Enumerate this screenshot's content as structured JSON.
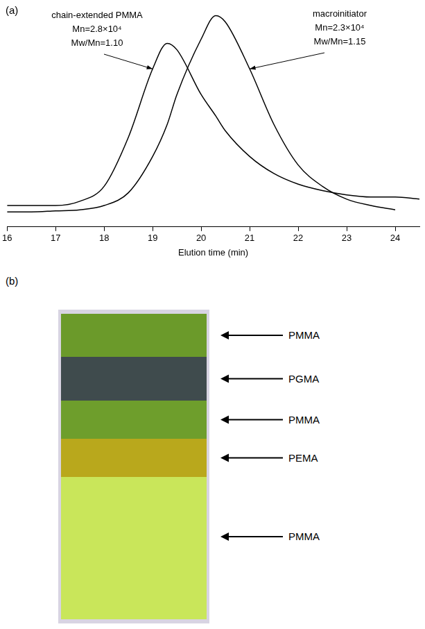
{
  "chart_data": {
    "type": "line",
    "panel_label": "(a)",
    "x_label": "Elution time (min)",
    "x": [
      16,
      16.5,
      17,
      17.5,
      18,
      18.5,
      19,
      19.3,
      19.5,
      20,
      20.3,
      20.5,
      21,
      21.5,
      22,
      22.5,
      23,
      23.5,
      24,
      24.5
    ],
    "series": [
      {
        "name": "chain-extended PMMA",
        "color": "#000000",
        "labels": [
          "Mn=2.8×10⁴",
          "Mw/Mn=1.10"
        ],
        "values": [
          0.1,
          0.1,
          0.1,
          0.12,
          0.19,
          0.42,
          0.74,
          0.86,
          0.83,
          0.62,
          0.52,
          0.45,
          0.33,
          0.25,
          0.2,
          0.17,
          0.15,
          0.14,
          0.14,
          0.13
        ]
      },
      {
        "name": "macroinitiator",
        "color": "#000000",
        "labels": [
          "Mn=2.3×10⁴",
          "Mw/Mn=1.15"
        ],
        "values": [
          0.07,
          0.07,
          0.075,
          0.08,
          0.1,
          0.16,
          0.33,
          0.48,
          0.62,
          0.88,
          0.99,
          0.96,
          0.74,
          0.48,
          0.29,
          0.19,
          0.13,
          0.1,
          0.08,
          null
        ]
      }
    ],
    "xlim": [
      16,
      24.5
    ],
    "xticks": [
      16,
      17,
      18,
      19,
      20,
      21,
      22,
      23,
      24
    ],
    "ylim": [
      0,
      1.05
    ],
    "tick_labels": "x",
    "grid": false
  },
  "panel_b": {
    "panel_label": "(b)",
    "layers": [
      {
        "label": "PMMA",
        "color": "#6b9a2a"
      },
      {
        "label": "PGMA",
        "color": "#3f4b4d"
      },
      {
        "label": "PMMA",
        "color": "#6e9e2c"
      },
      {
        "label": "PEMA",
        "color": "#b9a81c"
      },
      {
        "label": "PMMA",
        "color": "#c9e65a"
      }
    ]
  }
}
